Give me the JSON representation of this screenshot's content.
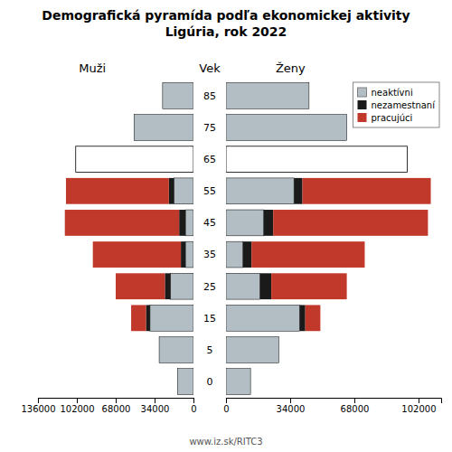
{
  "chart_data": [
    {
      "type": "bar",
      "orientation": "horizontal",
      "stacked": true,
      "title": "Demografická pyramída podľa ekonomickej aktivity\nLigúria, rok 2022",
      "subtitle": "Muži",
      "ylabel": "Vek",
      "annotations": [
        "www.iz.sk/RITC3"
      ],
      "categories": [
        "0",
        "5",
        "15",
        "25",
        "35",
        "45",
        "55",
        "65",
        "75",
        "85"
      ],
      "series": [
        {
          "color": "#b2bec3",
          "colors": [
            "#b2bec3",
            "#b2bec3",
            "#b2bec3",
            "#b2bec3",
            "#b2bec3",
            "#b2bec3",
            "#b2bec3",
            "#ffffff",
            "#b2bec3",
            "#b2bec3"
          ],
          "values": [
            14000,
            30000,
            38000,
            20000,
            7000,
            7000,
            17000,
            103000,
            52000,
            27000
          ]
        },
        {
          "color": "#1a1a1a",
          "values": [
            0,
            0,
            3500,
            5000,
            4000,
            5500,
            4500,
            0,
            0,
            0
          ]
        },
        {
          "color": "#c0392b",
          "values": [
            0,
            0,
            13000,
            43000,
            77000,
            100000,
            90000,
            0,
            0,
            0
          ]
        }
      ],
      "xlim": [
        136000,
        0
      ],
      "xticks": [
        0,
        34000,
        68000,
        102000,
        136000
      ],
      "grid": false
    },
    {
      "type": "bar",
      "orientation": "horizontal",
      "stacked": true,
      "subtitle": "Ženy",
      "categories": [
        "0",
        "5",
        "15",
        "25",
        "35",
        "45",
        "55",
        "65",
        "75",
        "85"
      ],
      "series": [
        {
          "name": "neaktívni",
          "color": "#b2bec3",
          "colors": [
            "#b2bec3",
            "#b2bec3",
            "#b2bec3",
            "#b2bec3",
            "#b2bec3",
            "#b2bec3",
            "#b2bec3",
            "#ffffff",
            "#b2bec3",
            "#b2bec3"
          ],
          "values": [
            13000,
            28000,
            39000,
            18000,
            9000,
            20000,
            36000,
            96000,
            64000,
            44000
          ]
        },
        {
          "name": "nezamestnaní",
          "color": "#1a1a1a",
          "values": [
            0,
            0,
            3000,
            6000,
            4500,
            5000,
            4500,
            0,
            0,
            0
          ]
        },
        {
          "name": "pracujúci",
          "color": "#c0392b",
          "values": [
            0,
            0,
            8000,
            40000,
            60000,
            82000,
            68000,
            0,
            0,
            0
          ]
        }
      ],
      "xlim": [
        0,
        114000
      ],
      "xticks": [
        0,
        34000,
        68000,
        102000
      ],
      "legend": "upper right",
      "grid": false
    }
  ]
}
